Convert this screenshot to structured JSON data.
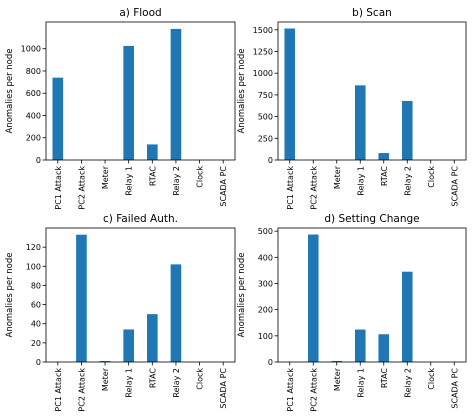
{
  "chart_data": [
    {
      "type": "bar",
      "title": "a) Flood",
      "ylabel": "Anomalies per node",
      "categories": [
        "PC1 Attack",
        "PC2 Attack",
        "Meter",
        "Relay 1",
        "RTAC",
        "Relay 2",
        "Clock",
        "SCADA PC"
      ],
      "values": [
        740,
        0,
        0,
        1025,
        140,
        1178,
        0,
        0
      ],
      "ylim": [
        0,
        1240
      ],
      "yticks": [
        0,
        200,
        400,
        600,
        800,
        1000
      ],
      "color": "#1f77b4"
    },
    {
      "type": "bar",
      "title": "b) Scan",
      "ylabel": "Anomalies per node",
      "categories": [
        "PC1 Attack",
        "PC2 Attack",
        "Meter",
        "Relay 1",
        "RTAC",
        "Relay 2",
        "Clock",
        "SCADA PC"
      ],
      "values": [
        1515,
        0,
        0,
        860,
        80,
        680,
        0,
        0
      ],
      "ylim": [
        0,
        1590
      ],
      "yticks": [
        0,
        250,
        500,
        750,
        1000,
        1250,
        1500
      ],
      "color": "#1f77b4"
    },
    {
      "type": "bar",
      "title": "c) Failed Auth.",
      "ylabel": "Anomalies per node",
      "categories": [
        "PC1 Attack",
        "PC2 Attack",
        "Meter",
        "Relay 1",
        "RTAC",
        "Relay 2",
        "Clock",
        "SCADA PC"
      ],
      "values": [
        0,
        133,
        1,
        34,
        50,
        102,
        0,
        0
      ],
      "ylim": [
        0,
        140
      ],
      "yticks": [
        0,
        20,
        40,
        60,
        80,
        100,
        120
      ],
      "color": "#1f77b4"
    },
    {
      "type": "bar",
      "title": "d) Setting Change",
      "ylabel": "Anomalies per node",
      "categories": [
        "PC1 Attack",
        "PC2 Attack",
        "Meter",
        "Relay 1",
        "RTAC",
        "Relay 2",
        "Clock",
        "SCADA PC"
      ],
      "values": [
        0,
        487,
        4,
        124,
        106,
        345,
        0,
        0
      ],
      "ylim": [
        0,
        512
      ],
      "yticks": [
        0,
        100,
        200,
        300,
        400,
        500
      ],
      "color": "#1f77b4"
    }
  ]
}
